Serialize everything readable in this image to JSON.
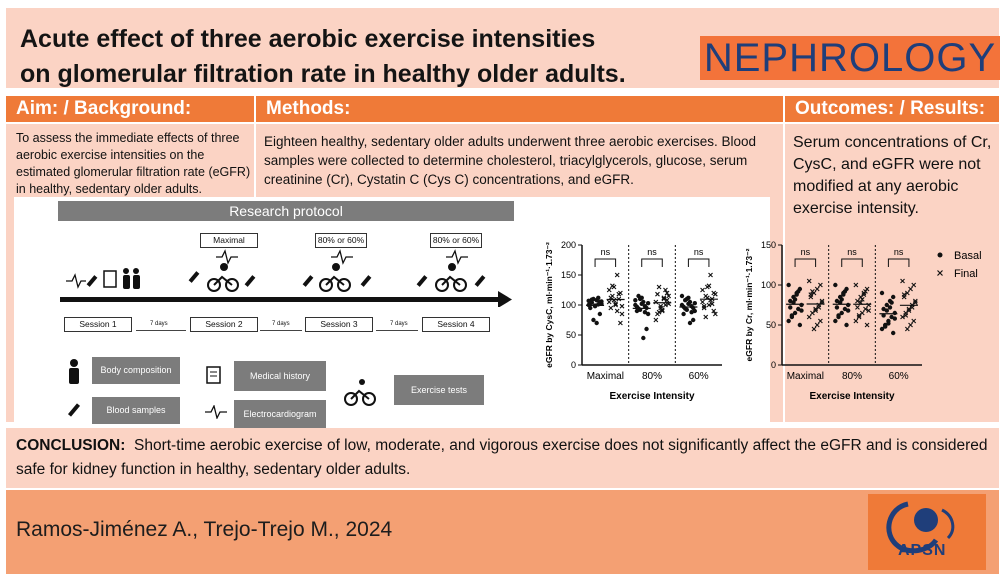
{
  "title_line1": "Acute effect of three aerobic exercise intensities",
  "title_line2": "on glomerular filtration rate in healthy older adults.",
  "journal": "NEPHROLOGY",
  "aim": {
    "header": "Aim:  /  Background:",
    "text": "To assess the immediate effects of three aerobic exercise intensities on the estimated glomerular filtration rate (eGFR) in healthy, sedentary older adults."
  },
  "methods": {
    "header": "Methods:",
    "text": "Eighteen healthy, sedentary older adults underwent three aerobic exercises. Blood samples were collected to determine cholesterol, triacylglycerols, glucose, serum creatinine (Cr), Cystatin C (Cys C) concentrations, and eGFR."
  },
  "results": {
    "header": "Outcomes:  /  Results:",
    "text": "Serum concentrations of Cr, CysC, and eGFR were not modified at any aerobic exercise intensity."
  },
  "protocol": {
    "title": "Research protocol",
    "sessions": [
      "Session 1",
      "Session 2",
      "Session 3",
      "Session 4"
    ],
    "days_label": "7 days",
    "intensity_boxes": [
      "Maximal",
      "80% or 60%",
      "80% or 60%"
    ],
    "legend": {
      "body_composition": "Body composition",
      "blood_samples": "Blood samples",
      "medical_history": "Medical history",
      "electrocardiogram": "Electrocardiogram",
      "exercise_tests": "Exercise tests"
    }
  },
  "colors": {
    "title_bg": "#fbd3c4",
    "header_bg": "#ef7a38",
    "journal_bg": "#f3733a",
    "journal_text": "#1f3e7a",
    "footer_bg": "#f4a073",
    "legend_bg": "#7c7c7c"
  },
  "chart_data": [
    {
      "type": "scatter",
      "ylabel": "eGFR by CysC, ml·min⁻¹·1.73⁻²",
      "xlabel": "Exercise Intensity",
      "categories": [
        "Maximal",
        "80%",
        "60%"
      ],
      "ylim": [
        0,
        200
      ],
      "yticks": [
        0,
        50,
        100,
        150,
        200
      ],
      "annotations": [
        "ns",
        "ns",
        "ns"
      ],
      "series": [
        {
          "name": "Basal",
          "marker": "dot",
          "values": [
            [
              100,
              105,
              108,
              110,
              95,
              102,
              112,
              98,
              104,
              107,
              85,
              70,
              75,
              103,
              106,
              101,
              99,
              109
            ],
            [
              100,
              95,
              105,
              110,
              90,
              85,
              98,
              102,
              115,
              108,
              60,
              45,
              92,
              97,
              103,
              88,
              112,
              94
            ],
            [
              100,
              95,
              105,
              110,
              85,
              90,
              98,
              102,
              108,
              115,
              75,
              70,
              92,
              97,
              103,
              88,
              112,
              94
            ]
          ]
        },
        {
          "name": "Final",
          "marker": "x",
          "values": [
            [
              105,
              120,
              150,
              130,
              95,
              85,
              110,
              100,
              115,
              125,
              70,
              90,
              108,
              112,
              98,
              118,
              102,
              132
            ],
            [
              105,
              120,
              110,
              95,
              85,
              115,
              100,
              90,
              130,
              75,
              108,
              112,
              98,
              118,
              102,
              125,
              92,
              88
            ],
            [
              105,
              120,
              150,
              130,
              95,
              85,
              110,
              100,
              115,
              125,
              90,
              108,
              112,
              98,
              118,
              102,
              132,
              80
            ]
          ]
        }
      ]
    },
    {
      "type": "scatter",
      "ylabel": "eGFR by Cr, ml·min⁻¹·1.73⁻²",
      "xlabel": "Exercise Intensity",
      "categories": [
        "Maximal",
        "80%",
        "60%"
      ],
      "ylim": [
        0,
        150
      ],
      "yticks": [
        0,
        50,
        100,
        150
      ],
      "annotations": [
        "ns",
        "ns",
        "ns"
      ],
      "legend": [
        "Basal",
        "Final"
      ],
      "series": [
        {
          "name": "Basal",
          "marker": "dot",
          "values": [
            [
              100,
              95,
              90,
              85,
              80,
              75,
              70,
              65,
              60,
              55,
              50,
              88,
              78,
              72,
              68,
              92,
              82,
              62
            ],
            [
              100,
              95,
              90,
              85,
              80,
              75,
              70,
              65,
              60,
              55,
              50,
              88,
              78,
              72,
              68,
              92,
              82,
              62
            ],
            [
              90,
              85,
              80,
              75,
              70,
              65,
              60,
              55,
              50,
              45,
              40,
              72,
              68,
              62,
              58,
              78,
              52,
              48
            ]
          ]
        },
        {
          "name": "Final",
          "marker": "x",
          "values": [
            [
              105,
              100,
              95,
              90,
              85,
              80,
              75,
              70,
              65,
              60,
              55,
              50,
              45,
              88,
              78,
              72,
              68,
              92
            ],
            [
              100,
              95,
              90,
              85,
              80,
              75,
              70,
              65,
              60,
              55,
              50,
              88,
              78,
              72,
              68,
              92,
              82,
              62
            ],
            [
              105,
              100,
              95,
              90,
              85,
              80,
              75,
              70,
              65,
              60,
              55,
              50,
              45,
              88,
              78,
              72,
              68,
              62
            ]
          ]
        }
      ]
    }
  ],
  "conclusion": {
    "label": "CONCLUSION:",
    "text": "Short-time aerobic exercise of low, moderate, and vigorous exercise does not significantly affect the eGFR and is considered safe for kidney function in healthy, sedentary older adults."
  },
  "footer": {
    "authors": "Ramos-Jiménez A., Trejo-Trejo M., 2024",
    "logo": "APSN"
  }
}
